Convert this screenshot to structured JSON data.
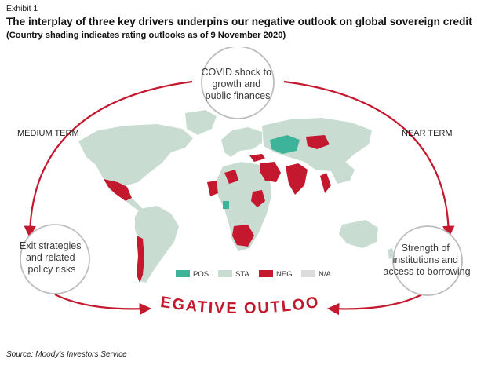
{
  "header": {
    "exhibit_label": "Exhibit 1",
    "title": "The interplay of three key drivers underpins our negative outlook on global sovereign credit",
    "subtitle": "(Country shading indicates rating outlooks as of 9 November 2020)"
  },
  "nodes": {
    "top": [
      "COVID shock to",
      "growth and",
      "public finances"
    ],
    "left": [
      "Exit strategies",
      "and related",
      "policy risks"
    ],
    "right": [
      "Strength of",
      "institutions and",
      "access to borrowing"
    ]
  },
  "terms": {
    "medium": "MEDIUM TERM",
    "near": "NEAR TERM"
  },
  "outcome": "NEGATIVE OUTLOOK",
  "legend": [
    {
      "label": "POS",
      "color": "#3db39a"
    },
    {
      "label": "STA",
      "color": "#c9dcd2"
    },
    {
      "label": "NEG",
      "color": "#c4182f"
    },
    {
      "label": "N/A",
      "color": "#dcdcdc"
    }
  ],
  "colors": {
    "arrow": "#c4182f",
    "node_ring": "#bdbdbd",
    "map_base": "#c9dcd2",
    "map_neg": "#c4182f",
    "map_pos": "#3db39a"
  },
  "source": "Source: Moody's Investors Service"
}
